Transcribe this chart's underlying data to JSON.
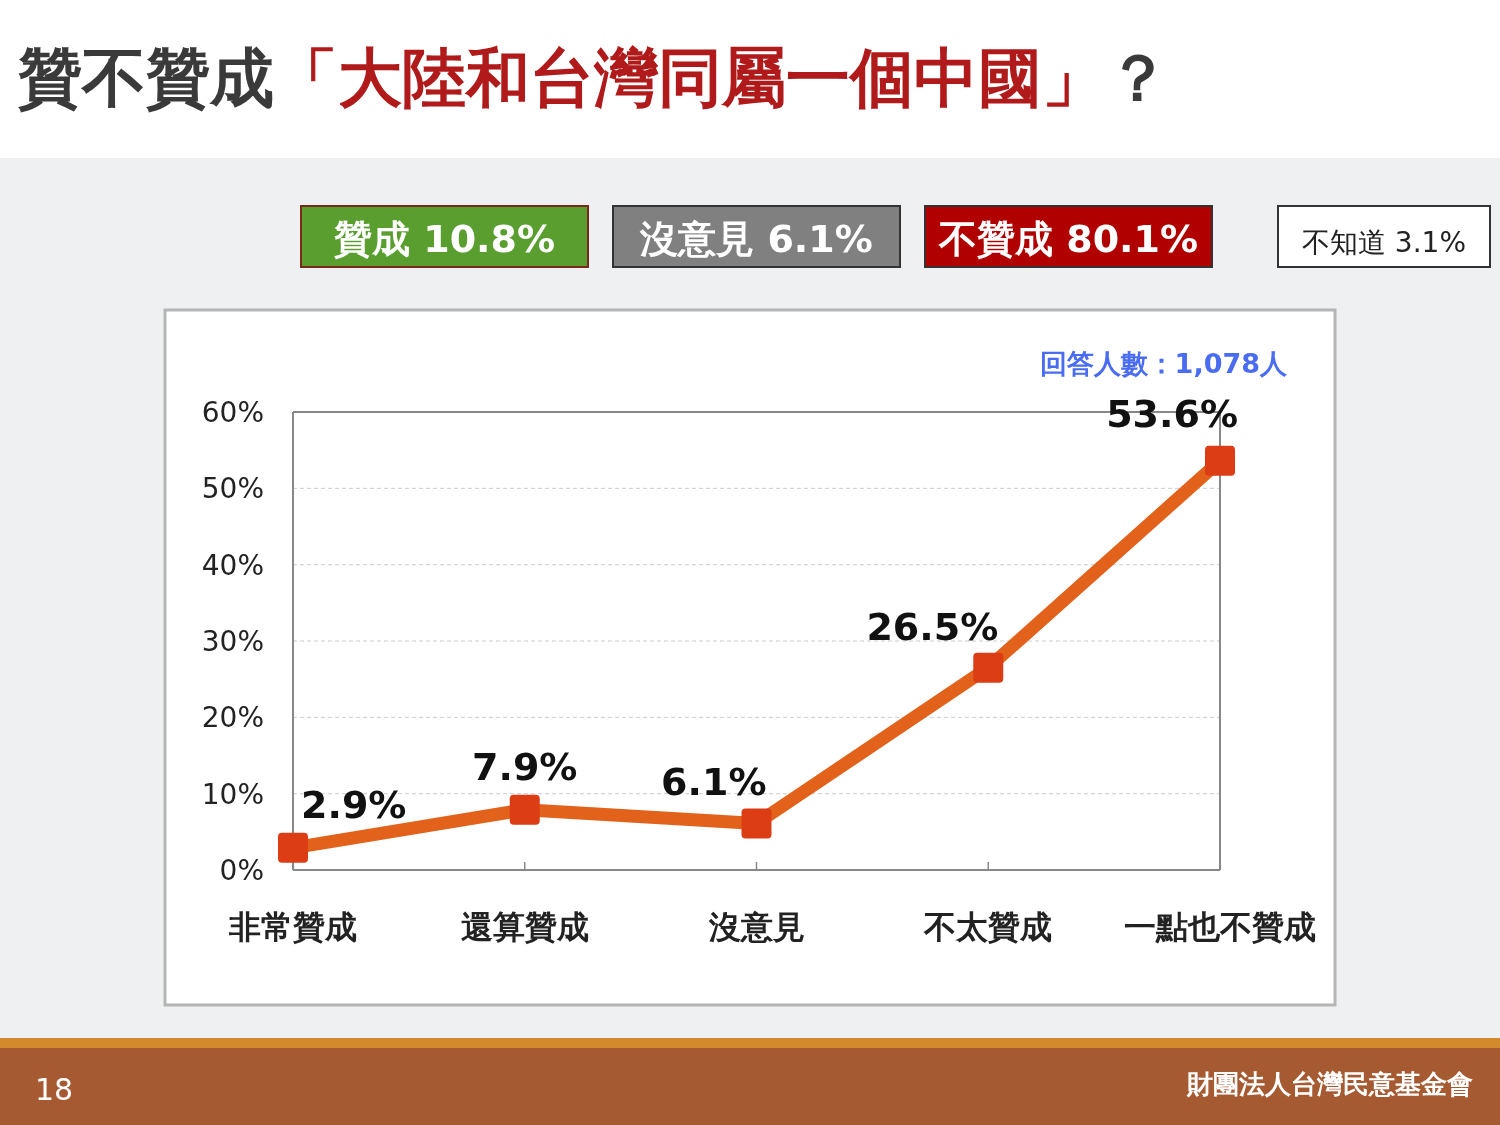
{
  "chart_data": {
    "type": "line",
    "title": "贊不贊成「大陸和台灣同屬一個中國」？",
    "categories": [
      "非常贊成",
      "還算贊成",
      "沒意見",
      "不太贊成",
      "一點也不贊成"
    ],
    "series": [
      {
        "color": "#e2621b",
        "values": [
          2.9,
          7.9,
          6.1,
          26.5,
          53.6
        ],
        "value_labels": [
          "2.9%",
          "7.9%",
          "6.1%",
          "26.5%",
          "53.6%"
        ]
      }
    ],
    "ylim": [
      0,
      60
    ],
    "yticks": [
      {
        "value": 0,
        "label": "0%"
      },
      {
        "value": 10,
        "label": "10%"
      },
      {
        "value": 20,
        "label": "20%"
      },
      {
        "value": 30,
        "label": "30%"
      },
      {
        "value": 40,
        "label": "40%"
      },
      {
        "value": 50,
        "label": "50%"
      },
      {
        "value": 60,
        "label": "60%"
      }
    ],
    "grid": "y",
    "marker": "square",
    "line_style": "solid",
    "annotations": [
      "贊成 10.8%",
      "沒意見 6.1%",
      "不贊成 80.1%",
      "不知道 3.1%",
      "回答人數：1,078人",
      "18",
      "財團法人台灣民意基金會"
    ]
  }
}
